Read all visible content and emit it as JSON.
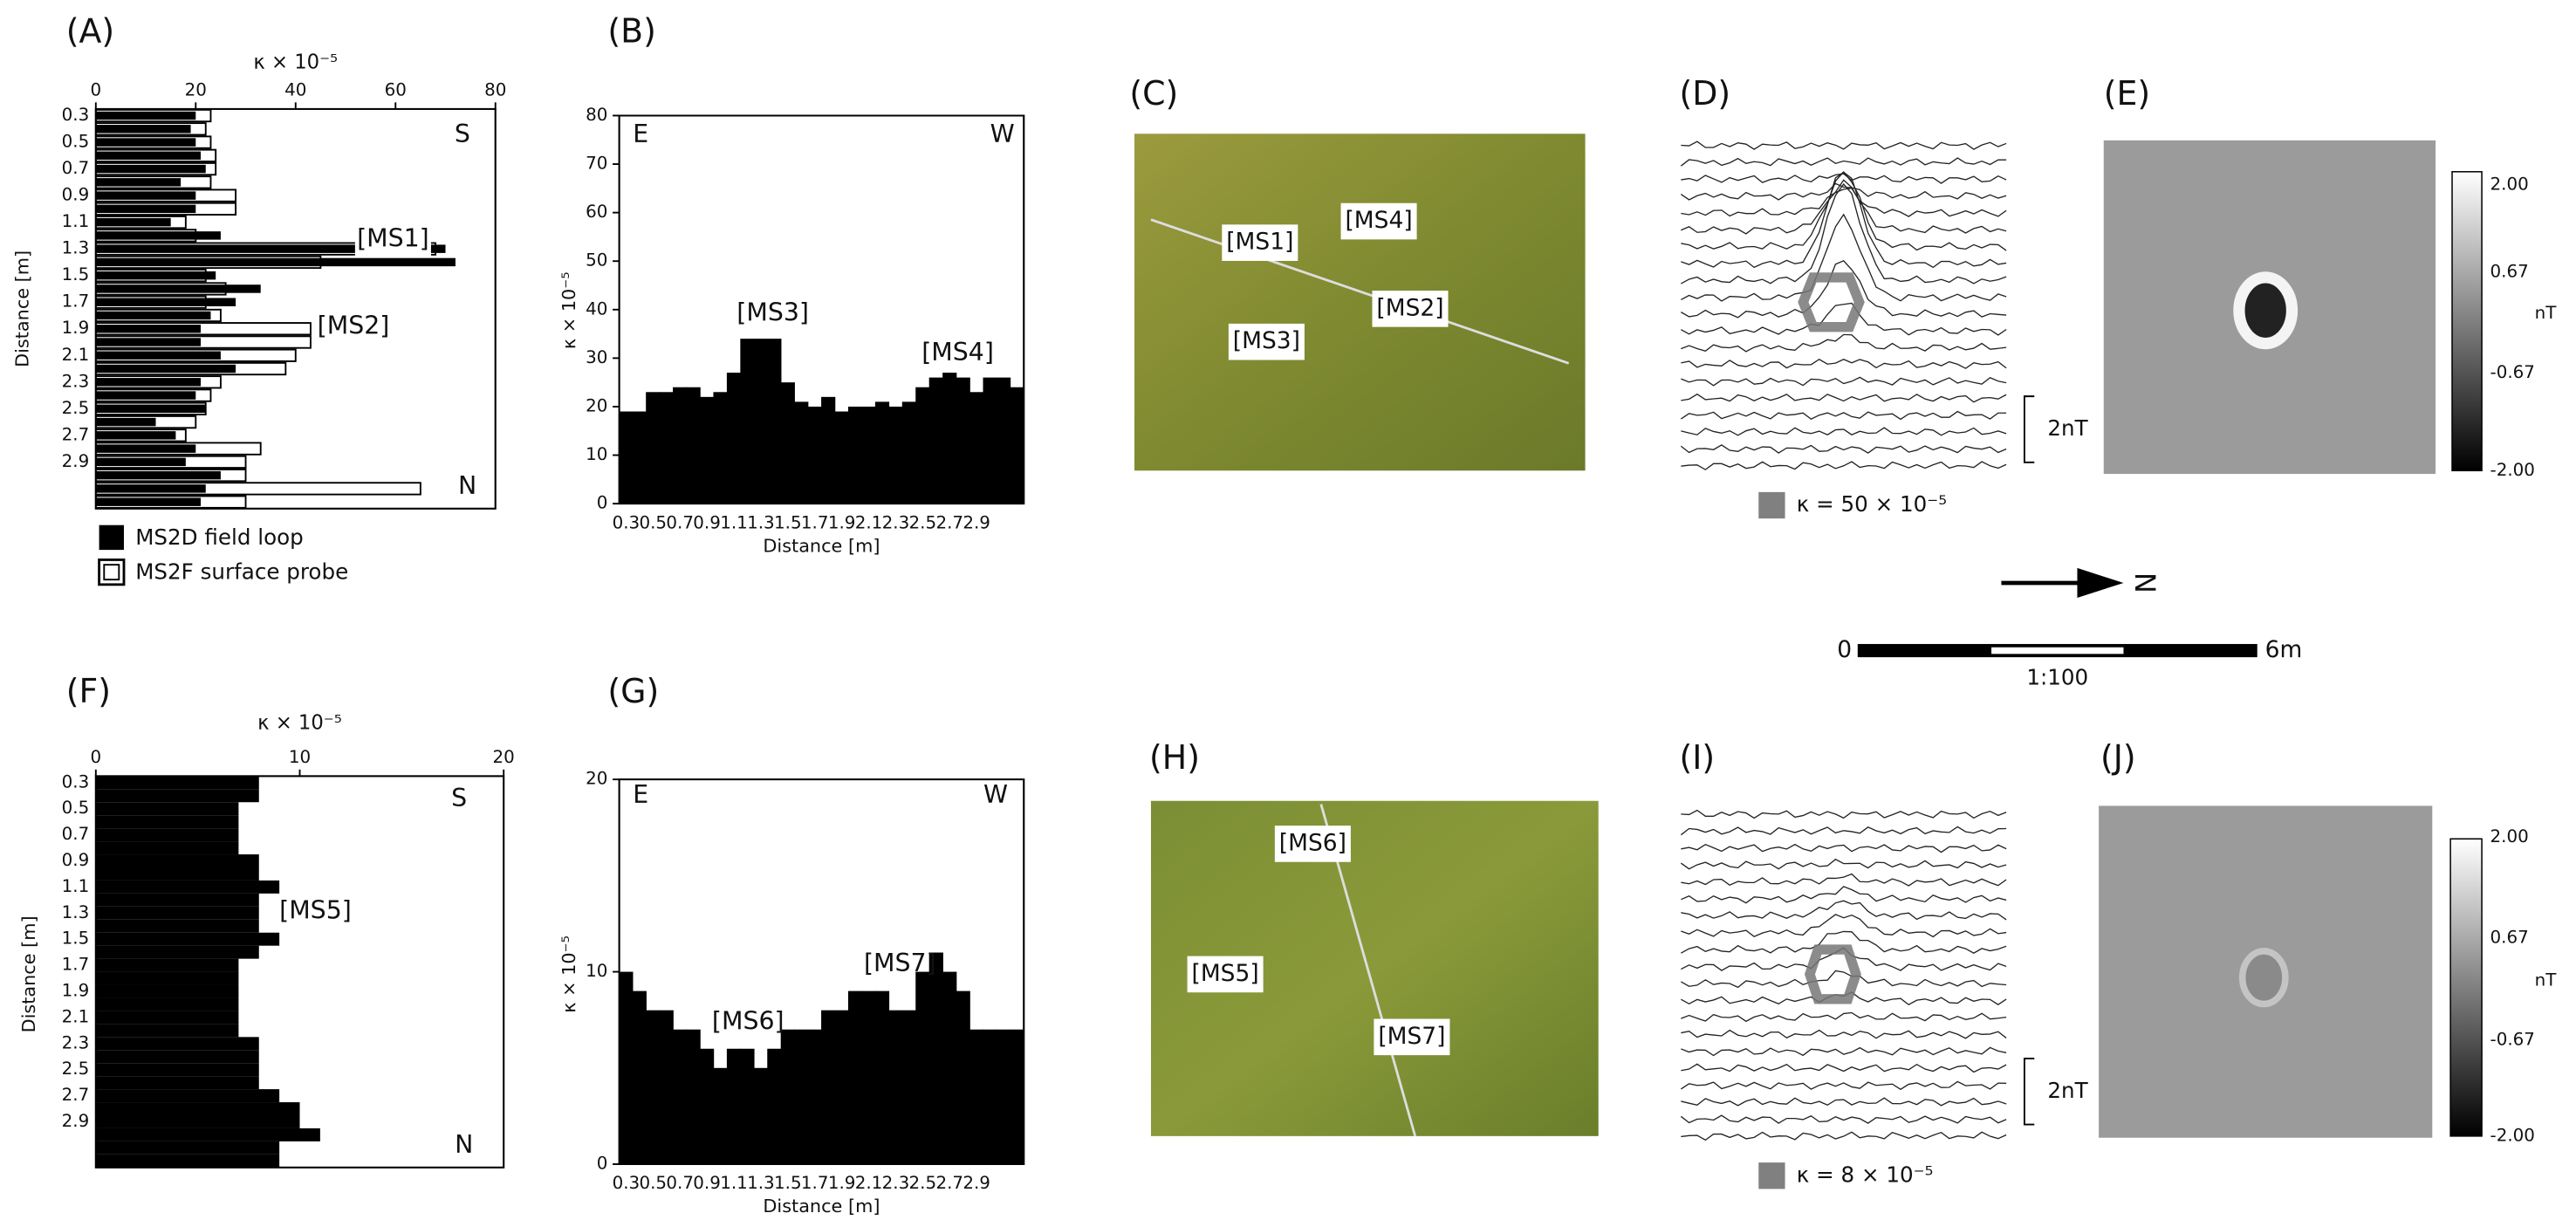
{
  "panel_letters": [
    "(A)",
    "(B)",
    "(C)",
    "(D)",
    "(E)",
    "(F)",
    "(G)",
    "(H)",
    "(I)",
    "(J)"
  ],
  "chart_data": [
    {
      "type": "bar",
      "orientation": "horizontal",
      "x_label": "κ × 10⁻⁵",
      "y_label": "Distance [m]",
      "categories": [
        "0.3",
        null,
        "0.5",
        null,
        "0.7",
        null,
        "0.9",
        null,
        "1.1",
        null,
        "1.3",
        null,
        "1.5",
        null,
        "1.7",
        null,
        "1.9",
        null,
        "2.1",
        null,
        "2.3",
        null,
        "2.5",
        null,
        "2.7",
        null,
        "2.9",
        null,
        null,
        null
      ],
      "series": [
        {
          "name": "MS2D field loop",
          "color": "#000000",
          "values": [
            20,
            19,
            20,
            21,
            22,
            17,
            20,
            20,
            15,
            25,
            70,
            72,
            24,
            33,
            28,
            23,
            21,
            21,
            25,
            28,
            21,
            20,
            22,
            12,
            16,
            20,
            18,
            25,
            22,
            21
          ]
        },
        {
          "name": "MS2F surface probe",
          "color": "#ffffff",
          "values": [
            23,
            22,
            23,
            24,
            24,
            23,
            28,
            28,
            18,
            20,
            68,
            45,
            22,
            26,
            22,
            25,
            43,
            43,
            40,
            38,
            25,
            23,
            22,
            20,
            18,
            33,
            30,
            30,
            65,
            30
          ]
        }
      ],
      "xlim": [
        0,
        80
      ],
      "xticks": [
        0,
        20,
        40,
        60,
        80
      ],
      "annotations": [
        "S",
        "N",
        "[MS1]",
        "[MS2]"
      ]
    },
    {
      "type": "bar",
      "orientation": "vertical",
      "x_label": "Distance [m]",
      "y_label": "κ × 10⁻⁵",
      "categories": [
        "0.3",
        null,
        "0.5",
        null,
        "0.7",
        null,
        "0.9",
        null,
        "1.1",
        null,
        "1.3",
        null,
        "1.5",
        null,
        "1.7",
        null,
        "1.9",
        null,
        "2.1",
        null,
        "2.3",
        null,
        "2.5",
        null,
        "2.7",
        null,
        "2.9",
        null,
        null,
        null
      ],
      "series": [
        {
          "name": "MS2D field loop",
          "color": "#000000",
          "values": [
            19,
            19,
            23,
            23,
            24,
            24,
            22,
            23,
            27,
            34,
            34,
            34,
            25,
            21,
            20,
            22,
            19,
            20,
            20,
            21,
            20,
            21,
            24,
            26,
            27,
            26,
            23,
            26,
            26,
            24
          ]
        }
      ],
      "ylim": [
        0,
        80
      ],
      "yticks": [
        0,
        10,
        20,
        30,
        40,
        50,
        60,
        70,
        80
      ],
      "annotations": [
        "E",
        "W",
        "[MS3]",
        "[MS4]"
      ]
    },
    {
      "type": "bar",
      "orientation": "horizontal",
      "x_label": "κ × 10⁻⁵",
      "y_label": "Distance [m]",
      "categories": [
        "0.3",
        null,
        "0.5",
        null,
        "0.7",
        null,
        "0.9",
        null,
        "1.1",
        null,
        "1.3",
        null,
        "1.5",
        null,
        "1.7",
        null,
        "1.9",
        null,
        "2.1",
        null,
        "2.3",
        null,
        "2.5",
        null,
        "2.7",
        null,
        "2.9",
        null,
        null,
        null
      ],
      "series": [
        {
          "name": "MS2D field loop",
          "color": "#000000",
          "values": [
            8,
            8,
            7,
            7,
            7,
            7,
            8,
            8,
            9,
            8,
            8,
            8,
            9,
            8,
            7,
            7,
            7,
            7,
            7,
            7,
            8,
            8,
            8,
            8,
            9,
            10,
            10,
            11,
            9,
            9
          ]
        }
      ],
      "xlim": [
        0,
        20
      ],
      "xticks": [
        0,
        10,
        20
      ],
      "annotations": [
        "S",
        "N",
        "[MS5]"
      ]
    },
    {
      "type": "bar",
      "orientation": "vertical",
      "x_label": "Distance [m]",
      "y_label": "κ × 10⁻⁵",
      "categories": [
        "0.3",
        null,
        "0.5",
        null,
        "0.7",
        null,
        "0.9",
        null,
        "1.1",
        null,
        "1.3",
        null,
        "1.5",
        null,
        "1.7",
        null,
        "1.9",
        null,
        "2.1",
        null,
        "2.3",
        null,
        "2.5",
        null,
        "2.7",
        null,
        "2.9",
        null,
        null,
        null
      ],
      "series": [
        {
          "name": "MS2D field loop",
          "color": "#000000",
          "values": [
            10,
            9,
            8,
            8,
            7,
            7,
            6,
            5,
            6,
            6,
            5,
            6,
            7,
            7,
            7,
            8,
            8,
            9,
            9,
            9,
            8,
            8,
            10,
            11,
            10,
            9,
            7,
            7,
            7,
            7
          ]
        }
      ],
      "ylim": [
        0,
        20
      ],
      "yticks": [
        0,
        10,
        20
      ],
      "annotations": [
        "E",
        "W",
        "[MS6]",
        "[MS7]"
      ]
    }
  ],
  "photo_c": {
    "labels": [
      "[MS1]",
      "[MS4]",
      "[MS2]",
      "[MS3]"
    ]
  },
  "photo_h": {
    "labels": [
      "[MS6]",
      "[MS5]",
      "[MS7]"
    ]
  },
  "traces_d": {
    "scale": "2nT",
    "legend": "κ = 50 × 10⁻⁵"
  },
  "traces_i": {
    "scale": "2nT",
    "legend": "κ = 8 × 10⁻⁵"
  },
  "map_e": {
    "colorbar_labels": [
      "2.00",
      "0.67",
      "-0.67",
      "-2.00"
    ],
    "unit": "nT"
  },
  "map_j": {
    "colorbar_labels": [
      "2.00",
      "0.67",
      "-0.67",
      "-2.00"
    ],
    "unit": "nT"
  },
  "north": "N",
  "scale_bar": {
    "start": "0",
    "end": "6m",
    "ratio": "1:100"
  }
}
